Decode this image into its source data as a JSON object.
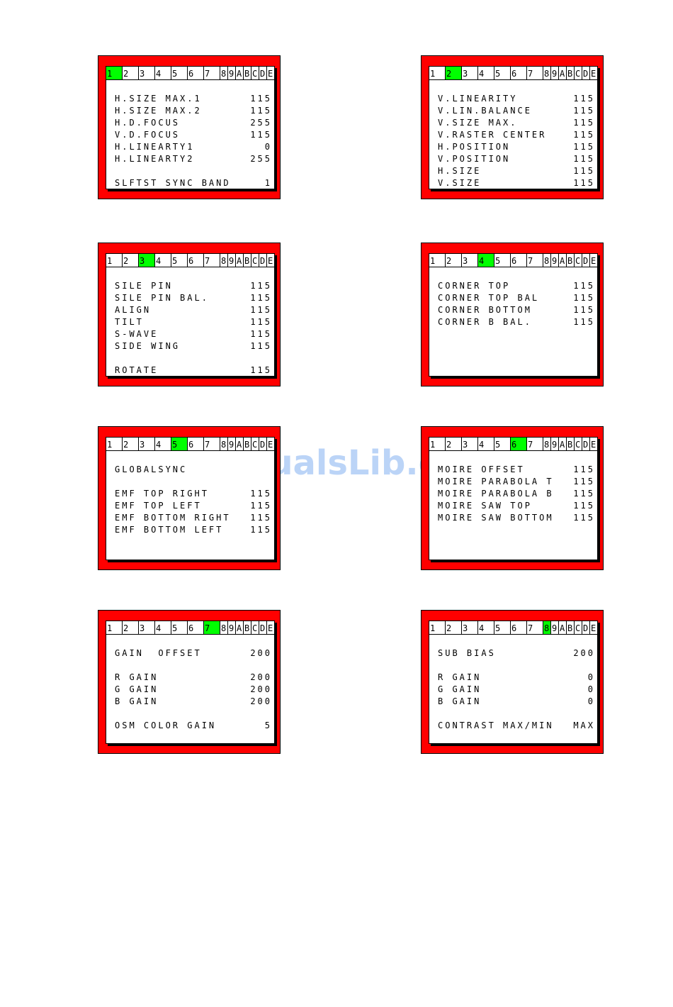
{
  "tabs": [
    "1",
    "2",
    "3",
    "4",
    "5",
    "6",
    "7",
    "8",
    "9",
    "A",
    "B",
    "C",
    "D",
    "E"
  ],
  "panels": [
    {
      "active": 0,
      "rows": [
        [
          "H.SIZE MAX.1",
          "115"
        ],
        [
          "H.SIZE MAX.2",
          "115"
        ],
        [
          "H.D.FOCUS",
          "255"
        ],
        [
          "V.D.FOCUS",
          "115"
        ],
        [
          "H.LINEARTY1",
          "0"
        ],
        [
          "H.LINEARTY2",
          "255"
        ],
        null,
        [
          "SLFTST SYNC BAND",
          "1"
        ]
      ]
    },
    {
      "active": 1,
      "rows": [
        [
          "V.LINEARITY",
          "115"
        ],
        [
          "V.LIN.BALANCE",
          "115"
        ],
        [
          "V.SIZE MAX.",
          "115"
        ],
        [
          "V.RASTER CENTER",
          "115"
        ],
        [
          "H.POSITION",
          "115"
        ],
        [
          "V.POSITION",
          "115"
        ],
        [
          "H.SIZE",
          "115"
        ],
        [
          "V.SIZE",
          "115"
        ]
      ]
    },
    {
      "active": 2,
      "rows": [
        [
          "SILE PIN",
          "115"
        ],
        [
          "SILE PIN BAL.",
          "115"
        ],
        [
          "ALIGN",
          "115"
        ],
        [
          "TILT",
          "115"
        ],
        [
          "S-WAVE",
          "115"
        ],
        [
          "SIDE WING",
          "115"
        ],
        null,
        [
          "ROTATE",
          "115"
        ]
      ]
    },
    {
      "active": 3,
      "rows": [
        [
          "CORNER TOP",
          "115"
        ],
        [
          "CORNER TOP BAL",
          "115"
        ],
        [
          "CORNER BOTTOM",
          "115"
        ],
        [
          "CORNER B BAL.",
          "115"
        ]
      ]
    },
    {
      "active": 4,
      "rows": [
        [
          "GLOBALSYNC"
        ],
        null,
        [
          "EMF TOP RIGHT",
          "115"
        ],
        [
          "EMF TOP LEFT",
          "115"
        ],
        [
          "EMF BOTTOM RIGHT",
          "115"
        ],
        [
          "EMF BOTTOM LEFT",
          "115"
        ]
      ]
    },
    {
      "active": 5,
      "rows": [
        [
          "MOIRE OFFSET",
          "115"
        ],
        [
          "MOIRE PARABOLA T",
          "115"
        ],
        [
          "MOIRE PARABOLA B",
          "115"
        ],
        [
          "MOIRE SAW TOP",
          "115"
        ],
        [
          "MOIRE SAW BOTTOM",
          "115"
        ]
      ]
    },
    {
      "active": 6,
      "rows": [
        [
          "GAIN  OFFSET",
          "200"
        ],
        null,
        [
          "R GAIN",
          "200"
        ],
        [
          "G GAIN",
          "200"
        ],
        [
          "B GAIN",
          "200"
        ],
        null,
        [
          "OSM COLOR GAIN",
          "5"
        ]
      ]
    },
    {
      "active": 7,
      "rows": [
        [
          "SUB BIAS",
          "200"
        ],
        null,
        [
          "R GAIN",
          "0"
        ],
        [
          "G GAIN",
          "0"
        ],
        [
          "B GAIN",
          "0"
        ],
        null,
        [
          "CONTRAST MAX/MIN",
          "MAX"
        ]
      ]
    }
  ],
  "watermark": "ManualsLib.com"
}
